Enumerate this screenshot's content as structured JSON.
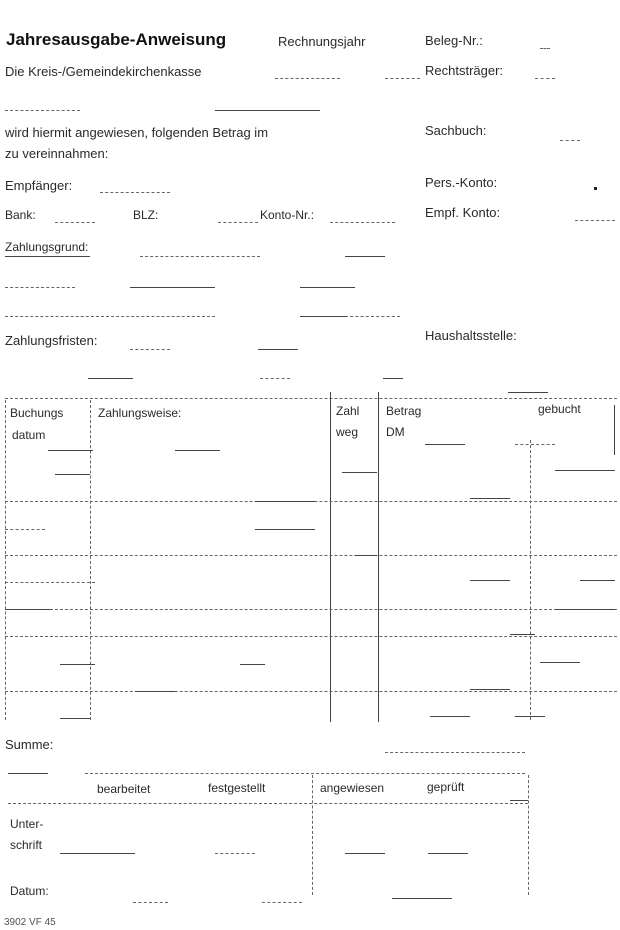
{
  "header": {
    "title": "Jahresausgabe-Anweisung",
    "rechnungsjahr": "Rechnungsjahr",
    "beleg_nr": "Beleg-Nr.:",
    "kasse": "Die Kreis-/Gemeindekirchenkasse",
    "rechtstraeger": "Rechtsträger:"
  },
  "body": {
    "instruction_1": "wird hiermit angewiesen, folgenden Betrag im",
    "instruction_2": "zu vereinnahmen:",
    "sachbuch": "Sachbuch:",
    "empfaenger": "Empfänger:",
    "pers_konto": "Pers.-Konto:",
    "bank": "Bank:",
    "blz": "BLZ:",
    "konto_nr": "Konto-Nr.:",
    "empf_konto": "Empf. Konto:",
    "zahlungsgrund": "Zahlungsgrund:",
    "zahlungsfristen": "Zahlungsfristen:",
    "haushaltsstelle": "Haushaltsstelle:"
  },
  "table": {
    "col_buchungs_1": "Buchungs",
    "col_buchungs_2": "datum",
    "col_zahlungsweise": "Zahlungsweise:",
    "col_zahl_1": "Zahl",
    "col_zahl_2": "weg",
    "col_betrag_1": "Betrag",
    "col_betrag_2": "DM",
    "col_gebucht": "gebucht"
  },
  "footer": {
    "summe": "Summe:",
    "bearbeitet": "bearbeitet",
    "festgestellt": "festgestellt",
    "angewiesen": "angewiesen",
    "geprueft": "geprüft",
    "unterschrift_1": "Unter-",
    "unterschrift_2": "schrift",
    "datum": "Datum:",
    "form_code": "3902 VF 45"
  }
}
